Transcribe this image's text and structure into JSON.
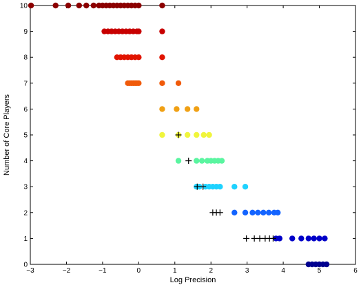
{
  "chart_data": {
    "type": "scatter",
    "xlabel": "Log Precision",
    "ylabel": "Number of Core Players",
    "xlim": [
      -3,
      6
    ],
    "ylim": [
      0,
      10
    ],
    "xticks": [
      -3,
      -2,
      -1,
      0,
      1,
      2,
      3,
      4,
      5,
      6
    ],
    "yticks": [
      0,
      1,
      2,
      3,
      4,
      5,
      6,
      7,
      8,
      9,
      10
    ],
    "grid": false,
    "level_colors": {
      "0": "#00008f",
      "1": "#0000c8",
      "2": "#1464ff",
      "3": "#1ed2ff",
      "4": "#5af5a0",
      "5": "#f0f53c",
      "6": "#f0a014",
      "7": "#f05a0a",
      "8": "#e11400",
      "9": "#c80000",
      "10": "#8c0000"
    },
    "series": [
      {
        "y": 10,
        "marker": "dot",
        "x": [
          -2.98,
          -2.3,
          -1.95,
          -1.65,
          -1.45,
          -1.25,
          -1.1,
          -1.0,
          -0.9,
          -0.8,
          -0.7,
          -0.6,
          -0.5,
          -0.4,
          -0.3,
          -0.2,
          -0.1,
          0.0,
          0.65
        ]
      },
      {
        "y": 9,
        "marker": "dot",
        "x": [
          -0.95,
          -0.85,
          -0.75,
          -0.65,
          -0.55,
          -0.45,
          -0.35,
          -0.25,
          -0.15,
          -0.05,
          0.0,
          0.65
        ]
      },
      {
        "y": 8,
        "marker": "dot",
        "x": [
          -0.6,
          -0.5,
          -0.4,
          -0.3,
          -0.2,
          -0.1,
          0.0,
          0.65
        ]
      },
      {
        "y": 7,
        "marker": "dot",
        "x": [
          -0.3,
          -0.25,
          -0.2,
          -0.15,
          -0.1,
          -0.05,
          0.0,
          0.65,
          1.1
        ]
      },
      {
        "y": 6,
        "marker": "dot",
        "x": [
          0.65,
          1.05,
          1.35,
          1.6
        ]
      },
      {
        "y": 5,
        "marker": "dot",
        "x": [
          0.65,
          1.1,
          1.35,
          1.6,
          1.8,
          1.95
        ]
      },
      {
        "y": 5,
        "marker": "plus",
        "x": [
          1.1
        ]
      },
      {
        "y": 4,
        "marker": "dot",
        "x": [
          1.1,
          1.6,
          1.75,
          1.9,
          2.0,
          2.1,
          2.2,
          2.3
        ]
      },
      {
        "y": 4,
        "marker": "plus",
        "x": [
          1.38
        ]
      },
      {
        "y": 3,
        "marker": "dot",
        "x": [
          1.6,
          1.68,
          1.85,
          1.95,
          2.05,
          2.15,
          2.25,
          2.65,
          2.95
        ]
      },
      {
        "y": 3,
        "marker": "plus",
        "x": [
          1.62,
          1.78
        ]
      },
      {
        "y": 2,
        "marker": "dot",
        "x": [
          2.65,
          2.95,
          3.15,
          3.3,
          3.45,
          3.6,
          3.75,
          3.85
        ]
      },
      {
        "y": 2,
        "marker": "plus",
        "x": [
          2.05,
          2.15,
          2.25
        ]
      },
      {
        "y": 1,
        "marker": "dot",
        "x": [
          3.8,
          3.9,
          4.25,
          4.5,
          4.7,
          4.85,
          5.0,
          5.15
        ]
      },
      {
        "y": 1,
        "marker": "plus",
        "x": [
          2.98,
          3.2,
          3.35,
          3.5,
          3.62,
          3.72
        ]
      },
      {
        "y": 0,
        "marker": "dot",
        "x": [
          4.7,
          4.8,
          4.9,
          5.0,
          5.1,
          5.2
        ]
      }
    ]
  }
}
